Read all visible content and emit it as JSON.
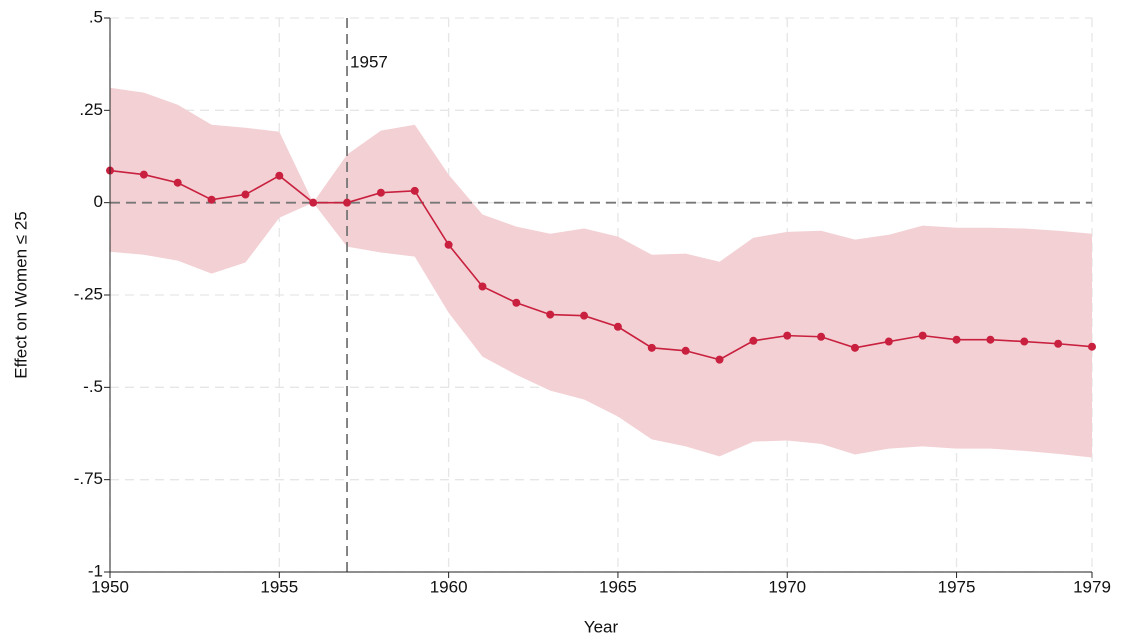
{
  "chart_data": {
    "type": "line",
    "x_label": "Year",
    "y_label": "Effect on Women ≤ 25",
    "x": [
      1950,
      1951,
      1952,
      1953,
      1954,
      1955,
      1956,
      1957,
      1958,
      1959,
      1960,
      1961,
      1962,
      1963,
      1964,
      1965,
      1966,
      1967,
      1968,
      1969,
      1970,
      1971,
      1972,
      1973,
      1974,
      1975,
      1976,
      1977,
      1978,
      1979
    ],
    "values": [
      0.087,
      0.076,
      0.054,
      0.008,
      0.022,
      0.073,
      0,
      0,
      0.027,
      0.032,
      -0.114,
      -0.227,
      -0.271,
      -0.303,
      -0.306,
      -0.336,
      -0.393,
      -0.401,
      -0.425,
      -0.374,
      -0.36,
      -0.363,
      -0.393,
      -0.376,
      -0.36,
      -0.371,
      -0.371,
      -0.376,
      -0.382,
      -0.39
    ],
    "upper": [
      0.311,
      0.298,
      0.265,
      0.211,
      0.203,
      0.192,
      0,
      0.13,
      0.195,
      0.211,
      0.076,
      -0.032,
      -0.065,
      -0.084,
      -0.07,
      -0.092,
      -0.141,
      -0.138,
      -0.16,
      -0.095,
      -0.079,
      -0.076,
      -0.1,
      -0.087,
      -0.062,
      -0.068,
      -0.068,
      -0.07,
      -0.076,
      -0.084
    ],
    "lower": [
      -0.133,
      -0.141,
      -0.157,
      -0.192,
      -0.162,
      -0.041,
      0,
      -0.119,
      -0.135,
      -0.146,
      -0.298,
      -0.417,
      -0.466,
      -0.509,
      -0.533,
      -0.579,
      -0.641,
      -0.66,
      -0.687,
      -0.647,
      -0.644,
      -0.653,
      -0.682,
      -0.666,
      -0.66,
      -0.666,
      -0.666,
      -0.672,
      -0.68,
      -0.69
    ],
    "color": "#c8203e",
    "band_color": "#f3d0d4",
    "xlim": [
      1950,
      1979
    ],
    "ylim": [
      -1,
      0.5
    ],
    "xticks": [
      1950,
      1955,
      1960,
      1965,
      1970,
      1975,
      1979
    ],
    "yticks": [
      {
        "value": 0.5,
        "label": ".5"
      },
      {
        "value": 0.25,
        "label": ".25"
      },
      0,
      {
        "value": -0.25,
        "label": "-.25"
      },
      {
        "value": -0.5,
        "label": "-.5"
      },
      {
        "value": -0.75,
        "label": "-.75"
      },
      -1
    ],
    "grid": true,
    "hline": 0,
    "vline": {
      "x": 1957,
      "label": "1957"
    }
  }
}
